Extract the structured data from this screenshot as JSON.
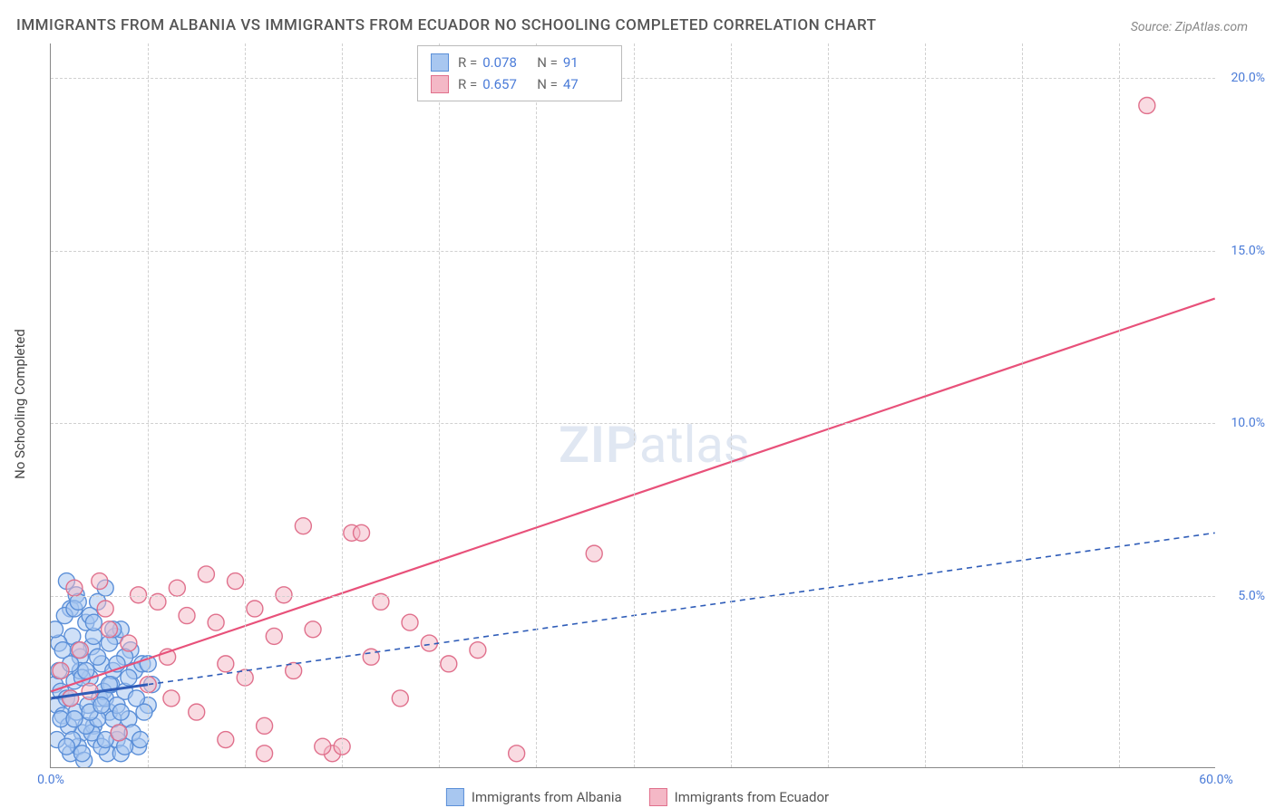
{
  "title": "IMMIGRANTS FROM ALBANIA VS IMMIGRANTS FROM ECUADOR NO SCHOOLING COMPLETED CORRELATION CHART",
  "source": "Source: ZipAtlas.com",
  "ylabel": "No Schooling Completed",
  "watermark_bold": "ZIP",
  "watermark_rest": "atlas",
  "chart": {
    "type": "scatter",
    "background_color": "#ffffff",
    "grid_color": "#d0d0d0",
    "axis_color": "#888888",
    "xlim": [
      0,
      60
    ],
    "ylim": [
      0,
      21
    ],
    "xtick_labels": [
      {
        "v": 0,
        "label": "0.0%"
      },
      {
        "v": 60,
        "label": "60.0%"
      }
    ],
    "ytick_labels": [
      {
        "v": 5,
        "label": "5.0%"
      },
      {
        "v": 10,
        "label": "10.0%"
      },
      {
        "v": 15,
        "label": "15.0%"
      },
      {
        "v": 20,
        "label": "20.0%"
      }
    ],
    "grid_v_step": 5,
    "grid_h_step": 5,
    "marker_radius": 9,
    "marker_stroke_width": 1.4,
    "trend_line_width": 2.2,
    "series": [
      {
        "name": "Immigrants from Albania",
        "fill": "#a8c7f0",
        "stroke": "#5b8fd8",
        "fill_opacity": 0.55,
        "legend_swatch_fill": "#a8c7f0",
        "legend_swatch_border": "#5b8fd8",
        "R": "0.078",
        "N": "91",
        "trend": {
          "x1": 0,
          "y1": 2.0,
          "x2": 60,
          "y2": 6.8,
          "dash": "6 5",
          "solid_until_x": 5,
          "color": "#2e5cb8"
        },
        "points": [
          [
            0.2,
            2.4
          ],
          [
            0.3,
            1.8
          ],
          [
            0.5,
            2.2
          ],
          [
            0.6,
            1.5
          ],
          [
            0.8,
            2.0
          ],
          [
            1.0,
            4.6
          ],
          [
            1.1,
            3.8
          ],
          [
            1.2,
            2.5
          ],
          [
            1.3,
            5.0
          ],
          [
            1.5,
            3.2
          ],
          [
            1.6,
            1.0
          ],
          [
            1.8,
            4.2
          ],
          [
            2.0,
            2.6
          ],
          [
            2.1,
            3.5
          ],
          [
            2.2,
            1.2
          ],
          [
            2.4,
            4.8
          ],
          [
            2.5,
            2.0
          ],
          [
            2.6,
            3.0
          ],
          [
            2.8,
            5.2
          ],
          [
            3.0,
            1.6
          ],
          [
            3.1,
            2.4
          ],
          [
            3.3,
            3.8
          ],
          [
            3.4,
            0.8
          ],
          [
            3.6,
            4.0
          ],
          [
            3.8,
            2.2
          ],
          [
            4.0,
            1.4
          ],
          [
            4.1,
            3.4
          ],
          [
            4.3,
            2.8
          ],
          [
            4.5,
            0.6
          ],
          [
            4.7,
            3.0
          ],
          [
            5.0,
            1.8
          ],
          [
            5.2,
            2.4
          ],
          [
            1.0,
            0.4
          ],
          [
            1.4,
            0.6
          ],
          [
            1.7,
            0.2
          ],
          [
            2.3,
            0.8
          ],
          [
            2.9,
            0.4
          ],
          [
            3.5,
            1.0
          ],
          [
            0.4,
            3.6
          ],
          [
            0.7,
            4.4
          ],
          [
            0.9,
            1.2
          ],
          [
            1.1,
            0.8
          ],
          [
            1.3,
            1.6
          ],
          [
            1.5,
            2.8
          ],
          [
            1.9,
            1.8
          ],
          [
            2.1,
            1.0
          ],
          [
            2.7,
            2.2
          ],
          [
            3.2,
            1.4
          ],
          [
            0.3,
            0.8
          ],
          [
            0.5,
            1.4
          ],
          [
            0.8,
            5.4
          ],
          [
            1.0,
            2.0
          ],
          [
            1.2,
            4.6
          ],
          [
            1.4,
            3.4
          ],
          [
            1.6,
            2.6
          ],
          [
            1.8,
            1.2
          ],
          [
            2.0,
            4.4
          ],
          [
            2.2,
            3.8
          ],
          [
            2.4,
            1.4
          ],
          [
            2.6,
            0.6
          ],
          [
            2.8,
            2.0
          ],
          [
            3.0,
            3.6
          ],
          [
            3.2,
            2.8
          ],
          [
            3.4,
            1.8
          ],
          [
            3.6,
            0.4
          ],
          [
            3.8,
            3.2
          ],
          [
            4.0,
            2.6
          ],
          [
            4.2,
            1.0
          ],
          [
            4.4,
            2.0
          ],
          [
            4.6,
            0.8
          ],
          [
            4.8,
            1.6
          ],
          [
            5.0,
            3.0
          ],
          [
            0.2,
            4.0
          ],
          [
            0.4,
            2.8
          ],
          [
            0.6,
            3.4
          ],
          [
            0.8,
            0.6
          ],
          [
            1.0,
            3.0
          ],
          [
            1.2,
            1.4
          ],
          [
            1.4,
            4.8
          ],
          [
            1.6,
            0.4
          ],
          [
            1.8,
            2.8
          ],
          [
            2.0,
            1.6
          ],
          [
            2.2,
            4.2
          ],
          [
            2.4,
            3.2
          ],
          [
            2.6,
            1.8
          ],
          [
            2.8,
            0.8
          ],
          [
            3.0,
            2.4
          ],
          [
            3.2,
            4.0
          ],
          [
            3.4,
            3.0
          ],
          [
            3.6,
            1.6
          ],
          [
            3.8,
            0.6
          ]
        ]
      },
      {
        "name": "Immigrants from Ecuador",
        "fill": "#f4b8c6",
        "stroke": "#e0708c",
        "fill_opacity": 0.5,
        "legend_swatch_fill": "#f4b8c6",
        "legend_swatch_border": "#e0708c",
        "R": "0.657",
        "N": "47",
        "trend": {
          "x1": 0,
          "y1": 2.2,
          "x2": 60,
          "y2": 13.6,
          "dash": null,
          "color": "#e8517a"
        },
        "points": [
          [
            0.5,
            2.8
          ],
          [
            1.0,
            2.0
          ],
          [
            1.5,
            3.4
          ],
          [
            2.0,
            2.2
          ],
          [
            2.5,
            5.4
          ],
          [
            3.0,
            4.0
          ],
          [
            3.5,
            1.0
          ],
          [
            4.0,
            3.6
          ],
          [
            4.5,
            5.0
          ],
          [
            5.0,
            2.4
          ],
          [
            5.5,
            4.8
          ],
          [
            6.0,
            3.2
          ],
          [
            6.5,
            5.2
          ],
          [
            7.0,
            4.4
          ],
          [
            7.5,
            1.6
          ],
          [
            8.0,
            5.6
          ],
          [
            8.5,
            4.2
          ],
          [
            9.0,
            3.0
          ],
          [
            9.5,
            5.4
          ],
          [
            10.0,
            2.6
          ],
          [
            10.5,
            4.6
          ],
          [
            11.0,
            1.2
          ],
          [
            11.5,
            3.8
          ],
          [
            12.0,
            5.0
          ],
          [
            12.5,
            2.8
          ],
          [
            13.0,
            7.0
          ],
          [
            13.5,
            4.0
          ],
          [
            14.5,
            0.4
          ],
          [
            15.5,
            6.8
          ],
          [
            16.5,
            3.2
          ],
          [
            17.0,
            4.8
          ],
          [
            18.0,
            2.0
          ],
          [
            18.5,
            4.2
          ],
          [
            19.5,
            3.6
          ],
          [
            20.5,
            3.0
          ],
          [
            14.0,
            0.6
          ],
          [
            16.0,
            6.8
          ],
          [
            22.0,
            3.4
          ],
          [
            24.0,
            0.4
          ],
          [
            28.0,
            6.2
          ],
          [
            15.0,
            0.6
          ],
          [
            9.0,
            0.8
          ],
          [
            11.0,
            0.4
          ],
          [
            56.5,
            19.2
          ],
          [
            1.2,
            5.2
          ],
          [
            2.8,
            4.6
          ],
          [
            6.2,
            2.0
          ]
        ]
      }
    ]
  },
  "colors": {
    "title": "#555555",
    "source": "#888888",
    "tick_label": "#4a7bd8",
    "ylabel": "#444444"
  }
}
